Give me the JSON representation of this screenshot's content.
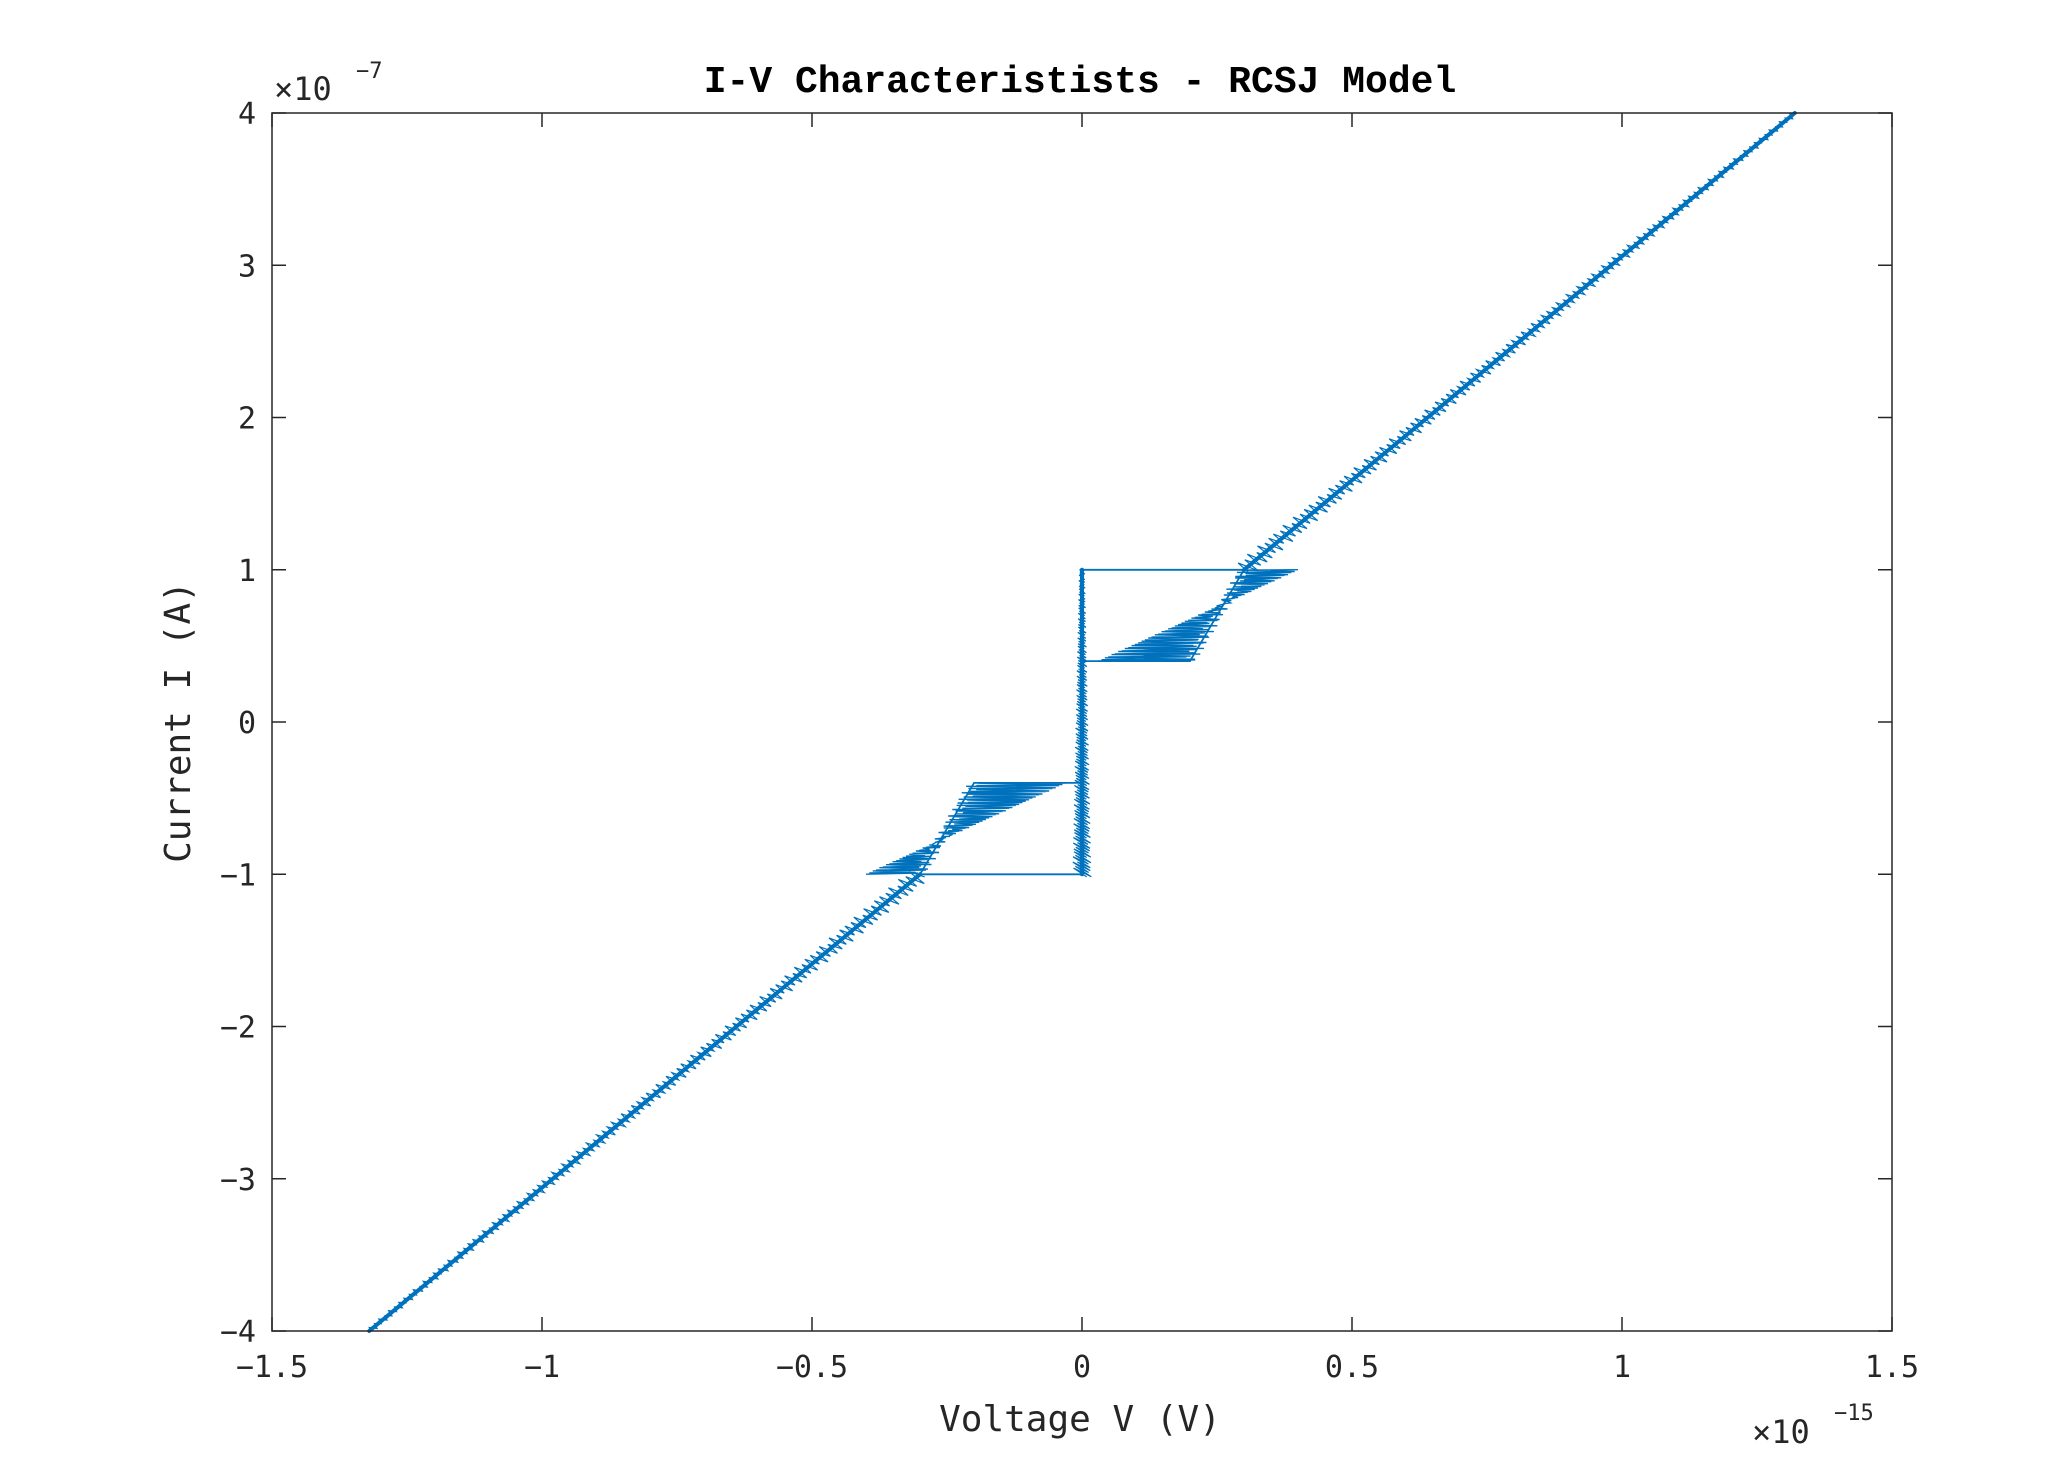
{
  "chart_data": {
    "type": "line",
    "title": "I-V Characteristists - RCSJ Model",
    "xlabel": "Voltage V (V)",
    "ylabel": "Current I (A)",
    "x_multiplier": {
      "base": "×10",
      "exponent": "−15",
      "value": 1e-15
    },
    "y_multiplier": {
      "base": "×10",
      "exponent": "−7",
      "value": 1e-07
    },
    "xlim": [
      -1.5,
      1.5
    ],
    "ylim": [
      -4,
      4
    ],
    "xticks": [
      -1.5,
      -1,
      -0.5,
      0,
      0.5,
      1,
      1.5
    ],
    "xtick_labels": [
      "−1.5",
      "−1",
      "−0.5",
      "0",
      "0.5",
      "1",
      "1.5"
    ],
    "yticks": [
      -4,
      -3,
      -2,
      -1,
      0,
      1,
      2,
      3,
      4
    ],
    "ytick_labels": [
      "−4",
      "−3",
      "−2",
      "−1",
      "0",
      "1",
      "2",
      "3",
      "4"
    ],
    "grid": false,
    "line_color": "#0072BD",
    "axis_color": "#262626",
    "series": [
      {
        "segments": [
          {
            "x": [
              0,
              0
            ],
            "y": [
              -1,
              1
            ]
          },
          {
            "x": [
              0,
              0.3
            ],
            "y": [
              1,
              1
            ]
          },
          {
            "x": [
              0.3,
              1.32
            ],
            "y": [
              1,
              4
            ]
          },
          {
            "x": [
              0,
              0.2
            ],
            "y": [
              0.4,
              0.4
            ]
          },
          {
            "x": [
              0.2,
              0.3
            ],
            "y": [
              0.4,
              1.0
            ]
          },
          {
            "x": [
              0,
              -0.3
            ],
            "y": [
              -1,
              -1
            ]
          },
          {
            "x": [
              -0.3,
              -1.32
            ],
            "y": [
              -1,
              -4
            ]
          },
          {
            "x": [
              0,
              -0.2
            ],
            "y": [
              -0.4,
              -0.4
            ]
          },
          {
            "x": [
              -0.2,
              -0.3
            ],
            "y": [
              -0.4,
              -1.0
            ]
          }
        ],
        "hysteresis_bands": [
          {
            "x_start": [
              0.03,
              0.4
            ],
            "x_end": [
              0.2,
              0.3
            ],
            "y": [
              0.4,
              1.0
            ]
          },
          {
            "x_start": [
              -0.03,
              -0.4
            ],
            "x_end": [
              -0.2,
              -0.3
            ],
            "y": [
              -0.4,
              -1.0
            ]
          }
        ]
      }
    ]
  }
}
